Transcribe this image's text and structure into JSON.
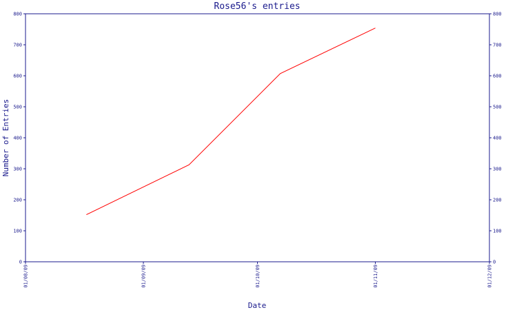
{
  "chart_data": {
    "type": "line",
    "title": "Rose56's entries",
    "xlabel": "Date",
    "ylabel": "Number of Entries",
    "x_ticks": [
      "01/08/09",
      "01/09/09",
      "01/10/09",
      "01/11/09",
      "01/12/09"
    ],
    "x_range": [
      "01/08/09",
      "01/12/09"
    ],
    "ylim": [
      0,
      800
    ],
    "y_ticks": [
      0,
      100,
      200,
      300,
      400,
      500,
      600,
      700,
      800
    ],
    "y_ticks_right": true,
    "grid": false,
    "series": [
      {
        "color": "#ff0000",
        "points": [
          {
            "x": "01/08/09 + 0.52 month",
            "date": "2009-08-17",
            "y": 152
          },
          {
            "x": "2009-09-13",
            "date": "2009-09-13",
            "y": 313
          },
          {
            "x": "2009-10-07",
            "date": "2009-10-07",
            "y": 607
          },
          {
            "x": "2009-11-01",
            "date": "2009-11-01",
            "y": 754
          }
        ]
      }
    ]
  }
}
